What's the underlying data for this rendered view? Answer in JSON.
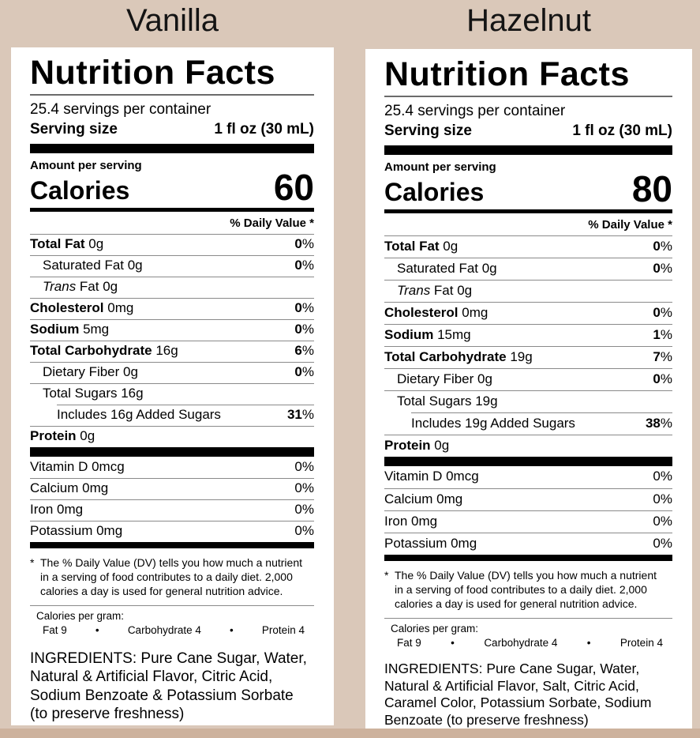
{
  "page": {
    "background_color": "#dac8b9",
    "bottom_band_color": "#cdb29d",
    "label_background": "#ffffff",
    "text_color": "#000000",
    "hairline_color": "#8a8a8a"
  },
  "shared": {
    "nf_title": "Nutrition Facts",
    "servings_per_container": "25.4 servings per container",
    "serving_size_label": "Serving size",
    "serving_size_value": "1 fl oz (30 mL)",
    "amount_per_serving": "Amount per serving",
    "calories_label": "Calories",
    "daily_value_header": "% Daily Value *",
    "footnote_marker": "*",
    "footnote_text": "The % Daily Value (DV) tells you how much a nutrient in a serving of food contributes to a daily diet. 2,000 calories a day is used for general nutrition advice.",
    "calories_per_gram_label": "Calories per gram:",
    "cpg_fat": "Fat 9",
    "cpg_bullet1": "•",
    "cpg_carb": "Carbohydrate 4",
    "cpg_bullet2": "•",
    "cpg_protein": "Protein 4"
  },
  "labels": [
    {
      "flavor": "Vanilla",
      "calories": "60",
      "rows": [
        {
          "b": "Total Fat",
          "r": " 0g",
          "v": "0",
          "p": "%"
        },
        {
          "b": "",
          "r": "Saturated Fat 0g",
          "v": "0",
          "p": "%"
        },
        {
          "i": "Trans",
          "r": " Fat 0g",
          "v": "",
          "p": ""
        },
        {
          "b": "Cholesterol",
          "r": " 0mg",
          "v": "0",
          "p": "%"
        },
        {
          "b": "Sodium",
          "r": " 5mg",
          "v": "0",
          "p": "%"
        },
        {
          "b": "Total Carbohydrate",
          "r": " 16g",
          "v": "6",
          "p": "%"
        },
        {
          "b": "",
          "r": "Dietary Fiber 0g",
          "v": "0",
          "p": "%"
        },
        {
          "b": "",
          "r": "Total Sugars 16g",
          "v": "",
          "p": ""
        },
        {
          "b": "",
          "r": "Includes 16g Added Sugars",
          "v": "31",
          "p": "%"
        },
        {
          "b": "Protein",
          "r": " 0g",
          "v": "",
          "p": ""
        }
      ],
      "vitamins": [
        {
          "name": "Vitamin D 0mcg",
          "value": "0%"
        },
        {
          "name": "Calcium 0mg",
          "value": "0%"
        },
        {
          "name": "Iron 0mg",
          "value": "0%"
        },
        {
          "name": "Potassium 0mg",
          "value": "0%"
        }
      ],
      "ingredients": "INGREDIENTS: Pure Cane Sugar, Water, Natural & Artificial Flavor, Citric Acid, Sodium Benzoate & Potassium Sorbate (to preserve freshness)"
    },
    {
      "flavor": "Hazelnut",
      "calories": "80",
      "rows": [
        {
          "b": "Total Fat",
          "r": " 0g",
          "v": "0",
          "p": "%"
        },
        {
          "b": "",
          "r": "Saturated Fat 0g",
          "v": "0",
          "p": "%"
        },
        {
          "i": "Trans",
          "r": " Fat 0g",
          "v": "",
          "p": ""
        },
        {
          "b": "Cholesterol",
          "r": " 0mg",
          "v": "0",
          "p": "%"
        },
        {
          "b": "Sodium",
          "r": " 15mg",
          "v": "1",
          "p": "%"
        },
        {
          "b": "Total Carbohydrate",
          "r": " 19g",
          "v": "7",
          "p": "%"
        },
        {
          "b": "",
          "r": "Dietary Fiber 0g",
          "v": "0",
          "p": "%"
        },
        {
          "b": "",
          "r": "Total Sugars 19g",
          "v": "",
          "p": ""
        },
        {
          "b": "",
          "r": "Includes 19g Added Sugars",
          "v": "38",
          "p": "%"
        },
        {
          "b": "Protein",
          "r": " 0g",
          "v": "",
          "p": ""
        }
      ],
      "vitamins": [
        {
          "name": "Vitamin D 0mcg",
          "value": "0%"
        },
        {
          "name": "Calcium 0mg",
          "value": "0%"
        },
        {
          "name": "Iron 0mg",
          "value": "0%"
        },
        {
          "name": "Potassium 0mg",
          "value": "0%"
        }
      ],
      "ingredients": "INGREDIENTS: Pure Cane Sugar, Water, Natural & Artificial Flavor, Salt, Citric Acid, Caramel Color, Potassium Sorbate, Sodium Benzoate (to preserve freshness)"
    }
  ]
}
